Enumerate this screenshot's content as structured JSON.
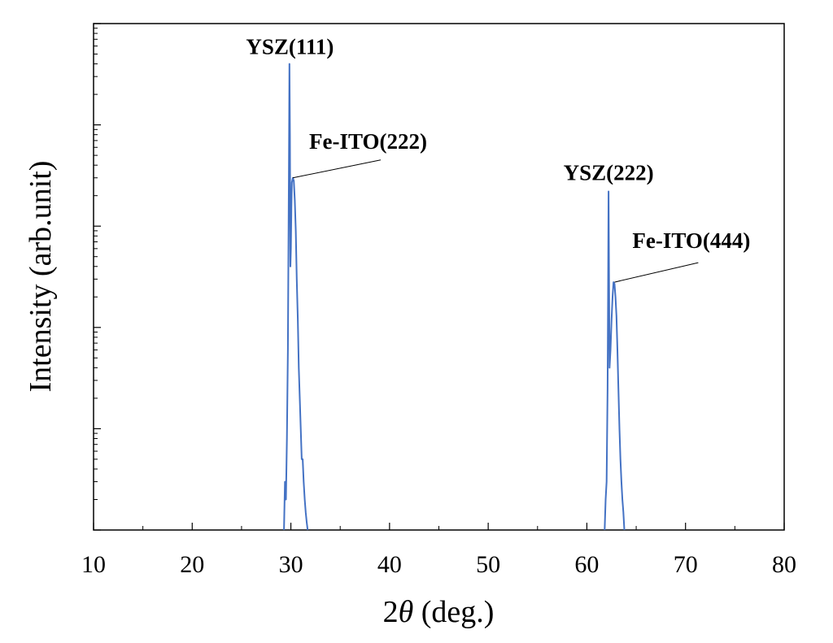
{
  "chart_data": {
    "type": "line",
    "title": "",
    "xlabel": {
      "prefix": "2",
      "symbol": "θ",
      "suffix": " (deg.)"
    },
    "ylabel": "Intensity (arb.unit)",
    "xlim": [
      10,
      80
    ],
    "xticks": [
      10,
      20,
      30,
      40,
      50,
      60,
      70,
      80
    ],
    "xticks_minor": [
      15,
      25,
      35,
      45,
      55,
      65,
      75
    ],
    "yscale": "log",
    "ylim": [
      1,
      100000
    ],
    "yticks_labeled": false,
    "grid": false,
    "legend": "none",
    "series": [
      {
        "color": "#4472C4",
        "x": [
          29.3,
          29.4,
          29.5,
          29.6,
          29.7,
          29.8,
          29.85,
          29.9,
          29.95,
          30.0,
          30.05,
          30.1,
          30.2,
          30.3,
          30.4,
          30.5,
          30.6,
          30.7,
          30.8,
          30.9,
          31.0,
          31.1,
          31.2,
          31.3,
          31.4,
          31.5,
          31.6,
          31.7
        ],
        "y": [
          1,
          3,
          2,
          8,
          60,
          3000,
          40000,
          8000,
          400,
          600,
          1500,
          2700,
          3000,
          2800,
          1800,
          900,
          300,
          120,
          40,
          20,
          10,
          5,
          5,
          3,
          2,
          1.5,
          1.2,
          1
        ]
      },
      {
        "color": "#4472C4",
        "x": [
          61.8,
          61.9,
          62.0,
          62.1,
          62.15,
          62.2,
          62.25,
          62.3,
          62.4,
          62.5,
          62.6,
          62.7,
          62.8,
          62.9,
          63.0,
          63.1,
          63.2,
          63.3,
          63.4,
          63.5,
          63.6,
          63.7,
          63.8
        ],
        "y": [
          1,
          2,
          3,
          25,
          200,
          2200,
          300,
          40,
          60,
          120,
          200,
          280,
          270,
          200,
          130,
          60,
          25,
          10,
          5,
          3,
          2,
          1.5,
          1
        ]
      }
    ],
    "annotations": [
      {
        "text": "YSZ(111)",
        "x": 29.9,
        "y": 40000
      },
      {
        "text": "Fe-ITO(222)",
        "x": 30.2,
        "y": 3000
      },
      {
        "text": "YSZ(222)",
        "x": 62.2,
        "y": 2200
      },
      {
        "text": "Fe-ITO(444)",
        "x": 62.8,
        "y": 280
      }
    ]
  }
}
